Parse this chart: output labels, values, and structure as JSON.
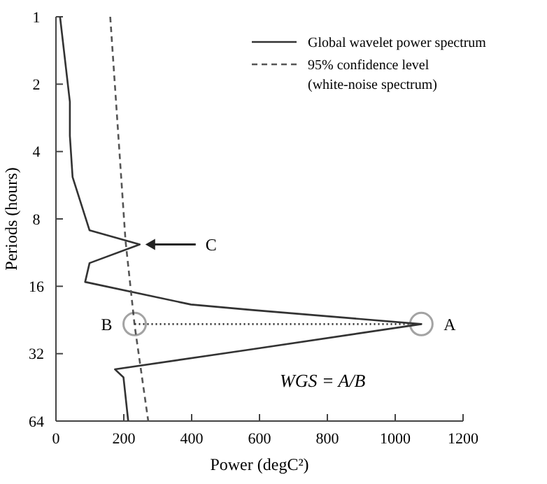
{
  "chart_data": {
    "type": "line",
    "xlabel": "Power (degC²)",
    "ylabel": "Periods (hours)",
    "xlim": [
      0,
      1200
    ],
    "xticks": [
      0,
      200,
      400,
      600,
      800,
      1000,
      1200
    ],
    "ylim": [
      64,
      1
    ],
    "yticks": [
      1,
      2,
      4,
      8,
      16,
      32,
      64
    ],
    "log": "y",
    "grid": false,
    "legend": "top right",
    "marker": "none",
    "series": [
      {
        "name": "Global wavelet power spectrum",
        "color": "#333333",
        "line_style": "solid",
        "x": [
          12,
          41,
          41,
          49,
          99,
          247,
          99,
          86,
          398,
          576,
          1077,
          576,
          174,
          199,
          213
        ],
        "values": [
          1,
          2.4,
          3.4,
          5.2,
          9,
          10.4,
          12.6,
          15.3,
          19.3,
          20.4,
          23.6,
          30.6,
          37.6,
          40.8,
          64
        ]
      },
      {
        "name": "95% confidence level (white-noise spectrum)",
        "color": "#555555",
        "line_style": "dashed",
        "x": [
          160,
          205,
          232,
          272
        ],
        "values": [
          1,
          10,
          24,
          64
        ]
      },
      {
        "color": "#333333",
        "line_style": "dotted",
        "marker": "circle",
        "x": [
          232,
          1077
        ],
        "values": [
          23.6,
          23.6
        ]
      }
    ],
    "annotations": [
      {
        "text": "A",
        "x": 1077,
        "y": 23.6
      },
      {
        "text": "B",
        "x": 232,
        "y": 23.6
      },
      {
        "text": "C",
        "x": 247,
        "y": 10.4
      },
      "WGS = A/B"
    ]
  }
}
